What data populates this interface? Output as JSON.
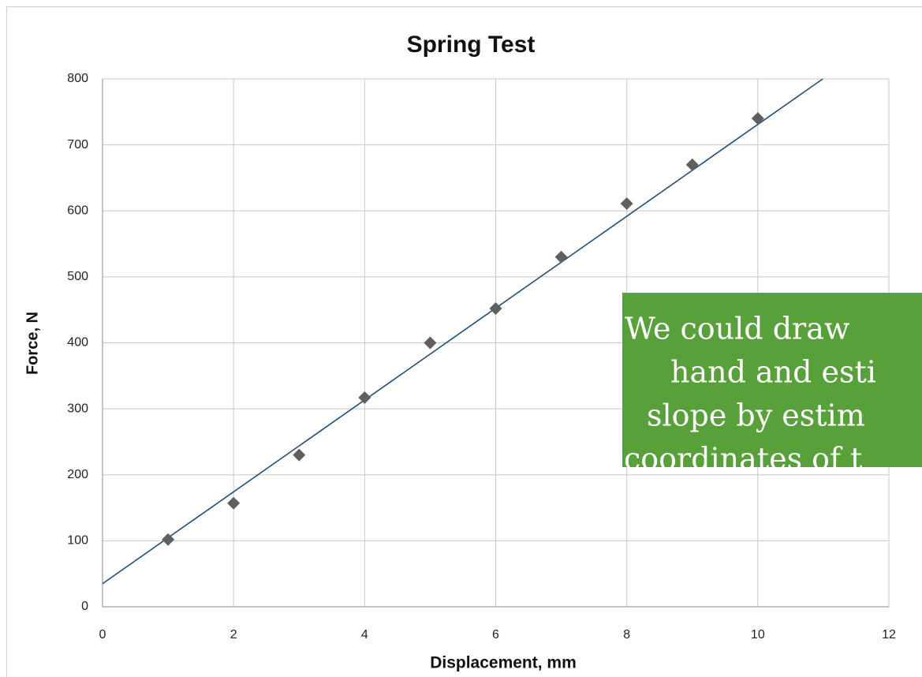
{
  "chart_data": {
    "type": "scatter",
    "title": "Spring Test",
    "x_label": "Displacement, mm",
    "y_label": "Force, N",
    "series": [
      {
        "name": "Force",
        "color": "#5f5f5f",
        "x": [
          1,
          2,
          3,
          4,
          5,
          6,
          7,
          8,
          9,
          10
        ],
        "values": [
          102,
          157,
          230,
          317,
          400,
          452,
          530,
          611,
          670,
          740
        ]
      }
    ],
    "trendline": {
      "slope": 69.6,
      "intercept": 35,
      "color": "#1f4e79"
    },
    "xlim": [
      0,
      12
    ],
    "xticks": [
      0,
      2,
      4,
      6,
      8,
      10,
      12
    ],
    "ylim": [
      0,
      800
    ],
    "yticks": [
      0,
      100,
      200,
      300,
      400,
      500,
      600,
      700,
      800
    ],
    "grid": true,
    "annotation": {
      "lines": [
        "We could draw",
        "hand and esti",
        "slope by estim",
        "coordinates of t"
      ],
      "color": "#58a03a"
    }
  }
}
